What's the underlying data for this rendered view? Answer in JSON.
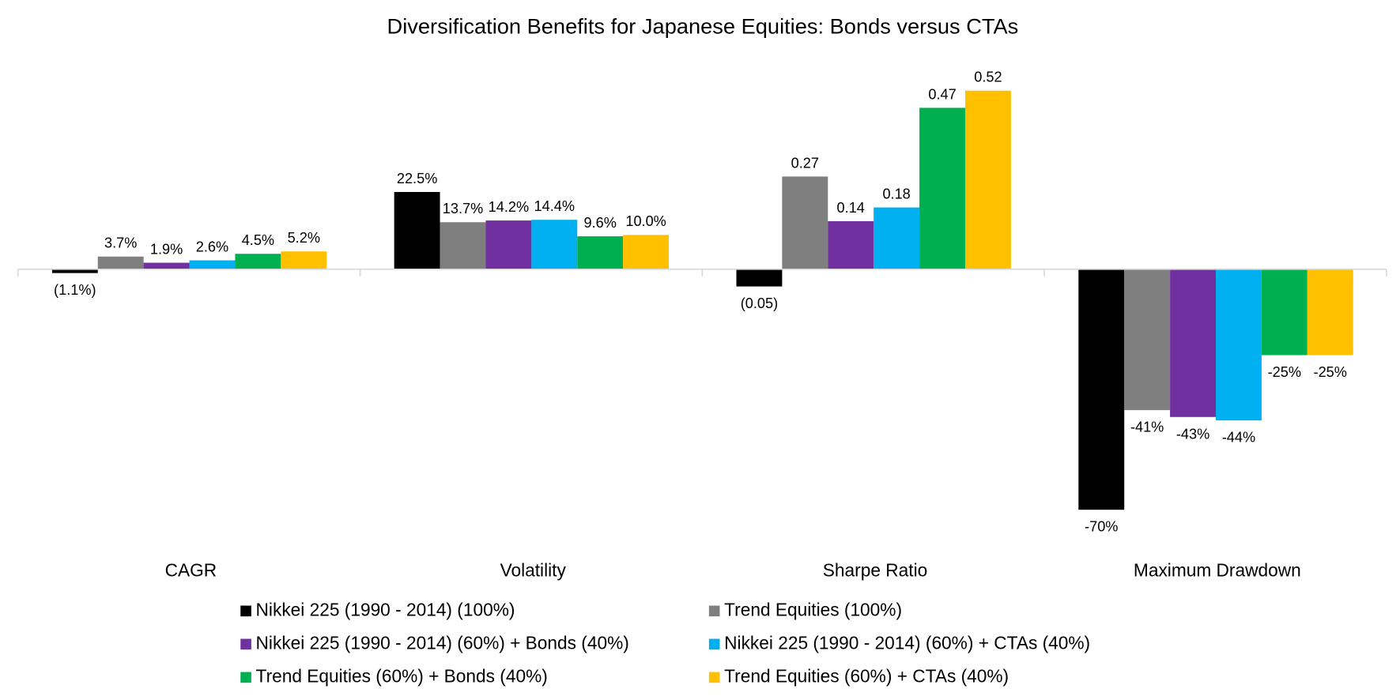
{
  "chart_data": {
    "type": "bar",
    "title": "Diversification Benefits for Japanese Equities: Bonds versus CTAs",
    "categories": [
      "CAGR",
      "Volatility",
      "Sharpe Ratio",
      "Maximum Drawdown"
    ],
    "series": [
      {
        "name": "Nikkei 225 (1990 - 2014) (100%)",
        "color": "#000000",
        "values": [
          -1.1,
          22.5,
          -0.05,
          -70
        ],
        "value_labels": [
          "(1.1%)",
          "22.5%",
          "(0.05)",
          "-70%"
        ]
      },
      {
        "name": "Trend Equities (100%)",
        "color": "#7f7f7f",
        "values": [
          3.7,
          13.7,
          0.27,
          -41
        ],
        "value_labels": [
          "3.7%",
          "13.7%",
          "0.27",
          "-41%"
        ]
      },
      {
        "name": "Nikkei 225 (1990 - 2014) (60%) + Bonds (40%)",
        "color": "#7030a0",
        "values": [
          1.9,
          14.2,
          0.14,
          -43
        ],
        "value_labels": [
          "1.9%",
          "14.2%",
          "0.14",
          "-43%"
        ]
      },
      {
        "name": "Nikkei 225 (1990 - 2014) (60%) + CTAs (40%)",
        "color": "#00b0f0",
        "values": [
          2.6,
          14.4,
          0.18,
          -44
        ],
        "value_labels": [
          "2.6%",
          "14.4%",
          "0.18",
          "-44%"
        ]
      },
      {
        "name": "Trend Equities (60%) + Bonds (40%)",
        "color": "#00b050",
        "values": [
          4.5,
          9.6,
          0.47,
          -25
        ],
        "value_labels": [
          "4.5%",
          "9.6%",
          "0.47",
          "-25%"
        ]
      },
      {
        "name": "Trend Equities (60%) + CTAs (40%)",
        "color": "#ffc000",
        "values": [
          5.2,
          10.0,
          0.52,
          -25
        ],
        "value_labels": [
          "5.2%",
          "10.0%",
          "0.52",
          "-25%"
        ]
      }
    ],
    "legend": "bottom"
  }
}
